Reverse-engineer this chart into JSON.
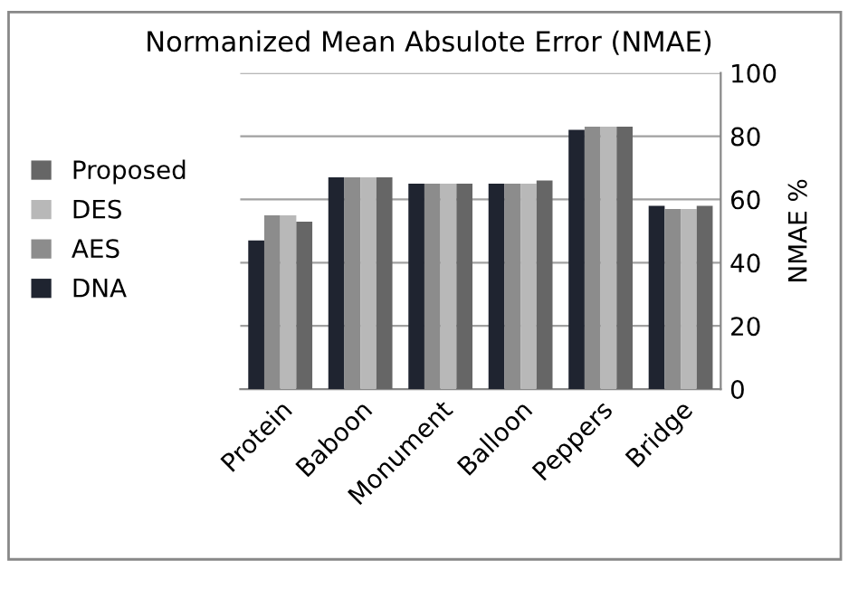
{
  "chart_data": {
    "type": "bar",
    "title": "Normanized Mean Absulote Error (NMAE)",
    "ylabel": "NMAE %",
    "categories": [
      "Protein",
      "Baboon",
      "Monument",
      "Balloon",
      "Peppers",
      "Bridge"
    ],
    "series": [
      {
        "name": "DNA",
        "color": "#1f2430",
        "values": [
          47,
          67,
          65,
          65,
          82,
          58
        ]
      },
      {
        "name": "AES",
        "color": "#8c8c8c",
        "values": [
          55,
          67,
          65,
          65,
          83,
          57
        ]
      },
      {
        "name": "DES",
        "color": "#b8b8b8",
        "values": [
          55,
          67,
          65,
          65,
          83,
          57
        ]
      },
      {
        "name": "Proposed",
        "color": "#666666",
        "values": [
          53,
          67,
          65,
          66,
          83,
          58
        ]
      }
    ],
    "ylim": [
      0,
      100
    ],
    "yticks": [
      0,
      20,
      40,
      60,
      80,
      100
    ],
    "grid": "y",
    "legend": "left"
  }
}
